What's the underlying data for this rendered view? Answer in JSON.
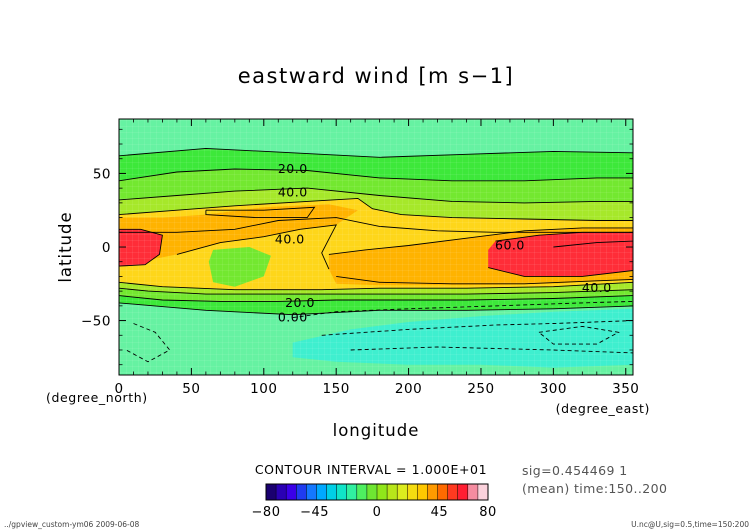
{
  "chart_data": {
    "type": "heatmap",
    "title": "eastward wind [m s−1]",
    "xlabel": "longitude",
    "ylabel": "latitude",
    "x_unit_label": "(degree_east)",
    "y_unit_label": "(degree_north)",
    "xlim": [
      0,
      355
    ],
    "ylim": [
      -87,
      87
    ],
    "x_ticks": [
      "0",
      "50",
      "100",
      "150",
      "200",
      "250",
      "300",
      "350"
    ],
    "x_tick_values": [
      0,
      50,
      100,
      150,
      200,
      250,
      300,
      350
    ],
    "y_ticks": [
      "50",
      "0",
      "−50"
    ],
    "y_tick_values": [
      50,
      0,
      -50
    ],
    "grid": false,
    "contour_interval_text": "CONTOUR INTERVAL = 1.000E+01",
    "contour_labels": [
      {
        "text": "20.0",
        "x": 120,
        "y": 53
      },
      {
        "text": "40.0",
        "x": 120,
        "y": 37
      },
      {
        "text": "40.0",
        "x": 118,
        "y": 5
      },
      {
        "text": "60.0",
        "x": 270,
        "y": 1
      },
      {
        "text": "40.0",
        "x": 330,
        "y": -28
      },
      {
        "text": "20.0",
        "x": 125,
        "y": -38
      },
      {
        "text": "0.00",
        "x": 120,
        "y": -48
      }
    ],
    "info_line1": "sig=0.454469 1",
    "info_line2": "(mean) time:150..200",
    "footer_left": "../gpview_custom-ym06  2009-06-08",
    "footer_right": "U.nc@U,sig=0.5,time=150:200",
    "colorbar": {
      "min": -80,
      "max": 80,
      "tick_labels": [
        "−80",
        "−45",
        "0",
        "45",
        "80"
      ],
      "tick_values": [
        -80,
        -45,
        0,
        45,
        80
      ],
      "colors": [
        "#1a0070",
        "#2a00b4",
        "#3a00e8",
        "#1f3cf0",
        "#1478ff",
        "#00a8ff",
        "#00cfe6",
        "#10e4c8",
        "#30f0a0",
        "#4ef060",
        "#6ee632",
        "#90e61a",
        "#b8e61a",
        "#dcec1e",
        "#f5dc10",
        "#ffc800",
        "#ff9a00",
        "#ff6a00",
        "#ff3a20",
        "#ff1e32",
        "#f58ca0",
        "#fbd2dc"
      ]
    },
    "palette": {
      "lt_neg10": "#3fefcf",
      "neg10_0": "#66f2a2",
      "0_10": "#3de83a",
      "10_20": "#73e830",
      "20_30": "#a6e82a",
      "30_40": "#fed61a",
      "40_50": "#ffb300",
      "50_60": "#ff7a14",
      "ge_60": "#ff2d38"
    }
  }
}
